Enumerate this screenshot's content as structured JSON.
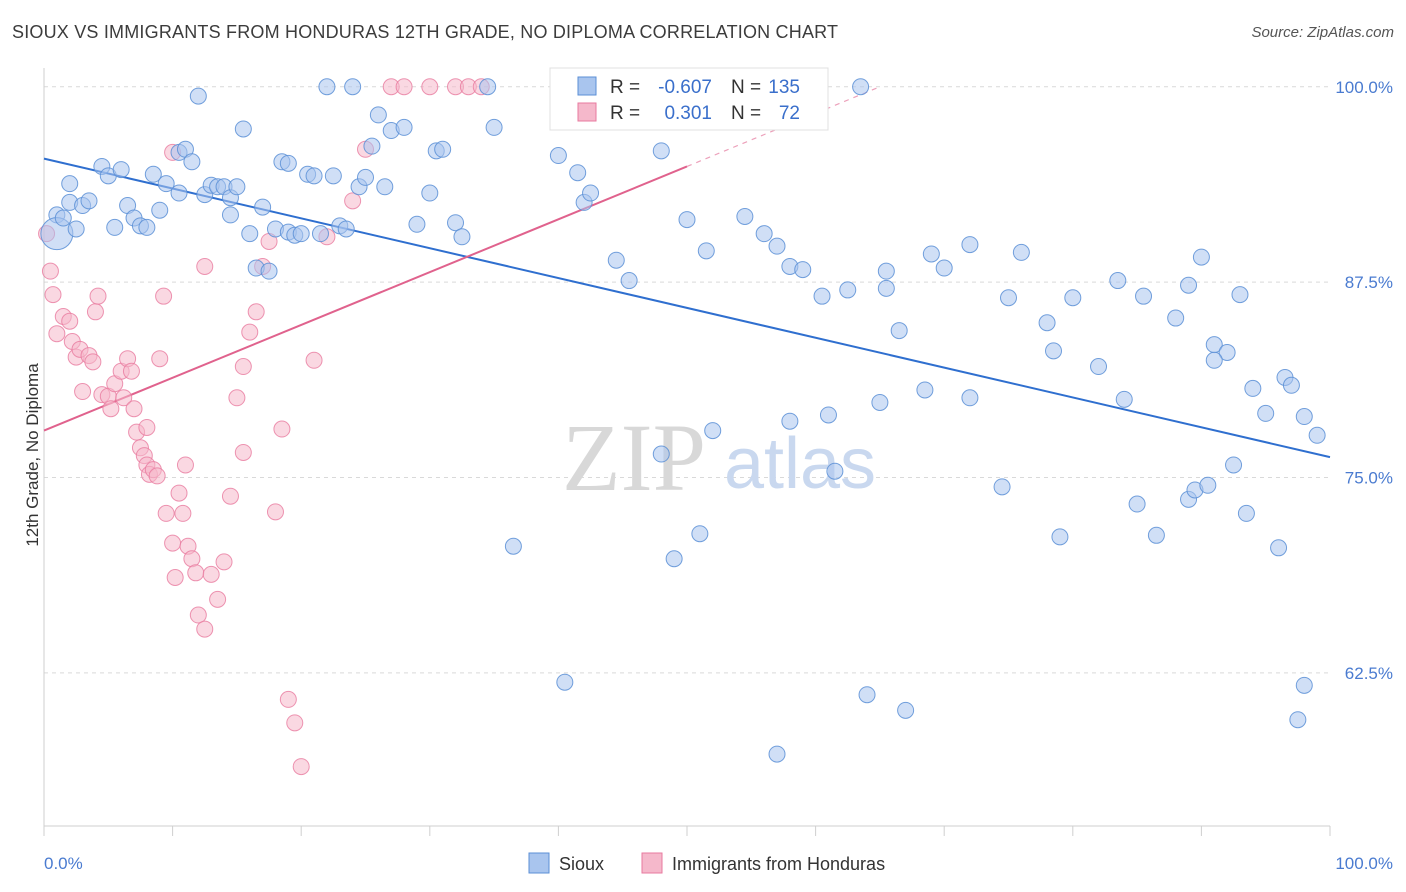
{
  "title": "SIOUX VS IMMIGRANTS FROM HONDURAS 12TH GRADE, NO DIPLOMA CORRELATION CHART",
  "source": "Source: ZipAtlas.com",
  "watermark": {
    "zip": "ZIP",
    "atlas": "atlas"
  },
  "colors": {
    "sioux": "#5b8fd6",
    "sioux_fill": "#a9c5ee",
    "honduras": "#e87a9f",
    "honduras_fill": "#f5b8cb",
    "sioux_line": "#2f6fcf",
    "honduras_line": "#e0628d",
    "grid": "#d9d9d9",
    "tick_text": "#4a7bd0"
  },
  "legend_box": {
    "rows": [
      {
        "r_label": "R =",
        "r_value": "-0.607",
        "n_label": "N =",
        "n_value": "135"
      },
      {
        "r_label": "R =",
        "r_value": "0.301",
        "n_label": "N =",
        "n_value": "72"
      }
    ]
  },
  "bottom_legend": [
    "Sioux",
    "Immigrants from Honduras"
  ],
  "chart_data": {
    "type": "scatter",
    "title": "SIOUX VS IMMIGRANTS FROM HONDURAS 12TH GRADE, NO DIPLOMA CORRELATION CHART",
    "xlabel": "",
    "ylabel": "12th Grade, No Diploma",
    "x_tick_labels": [
      "0.0%",
      "100.0%"
    ],
    "y_tick_labels": [
      "100.0%",
      "87.5%",
      "75.0%",
      "62.5%"
    ],
    "xlim": [
      0,
      100
    ],
    "ylim": [
      52.7,
      101.2
    ],
    "y_ticks": [
      100.0,
      87.5,
      75.0,
      62.5
    ],
    "grid": true,
    "series": [
      {
        "name": "Sioux",
        "R": -0.607,
        "N": 135,
        "trend": [
          [
            0,
            95.4
          ],
          [
            100,
            76.3
          ]
        ],
        "points": [
          [
            1,
            91.8
          ],
          [
            1,
            90.6
          ],
          [
            1.5,
            91.6
          ],
          [
            2,
            92.6
          ],
          [
            2,
            93.8
          ],
          [
            2.5,
            90.9
          ],
          [
            3,
            92.4
          ],
          [
            3.5,
            92.7
          ],
          [
            4.5,
            94.9
          ],
          [
            5,
            94.3
          ],
          [
            5.5,
            91.0
          ],
          [
            6,
            94.7
          ],
          [
            6.5,
            92.4
          ],
          [
            7,
            91.6
          ],
          [
            7.5,
            91.1
          ],
          [
            8,
            91.0
          ],
          [
            8.5,
            94.4
          ],
          [
            9,
            92.1
          ],
          [
            9.5,
            93.8
          ],
          [
            10.5,
            93.2
          ],
          [
            10.5,
            95.8
          ],
          [
            11,
            96.0
          ],
          [
            11.5,
            95.2
          ],
          [
            12,
            99.4
          ],
          [
            12.5,
            93.1
          ],
          [
            13,
            93.7
          ],
          [
            13.5,
            93.6
          ],
          [
            14,
            93.6
          ],
          [
            14.5,
            92.9
          ],
          [
            14.5,
            91.8
          ],
          [
            15,
            93.6
          ],
          [
            15.5,
            97.3
          ],
          [
            16,
            90.6
          ],
          [
            16.5,
            88.4
          ],
          [
            17,
            92.3
          ],
          [
            17.5,
            88.2
          ],
          [
            18,
            90.9
          ],
          [
            18.5,
            95.2
          ],
          [
            19,
            95.1
          ],
          [
            19,
            90.7
          ],
          [
            19.5,
            90.5
          ],
          [
            20,
            90.6
          ],
          [
            20.5,
            94.4
          ],
          [
            21,
            94.3
          ],
          [
            21.5,
            90.6
          ],
          [
            22,
            100.0
          ],
          [
            22.5,
            94.3
          ],
          [
            23,
            91.1
          ],
          [
            23.5,
            90.9
          ],
          [
            24,
            100.0
          ],
          [
            24.5,
            93.6
          ],
          [
            25,
            94.2
          ],
          [
            25.5,
            96.2
          ],
          [
            26,
            98.2
          ],
          [
            26.5,
            93.6
          ],
          [
            27,
            97.2
          ],
          [
            28,
            97.4
          ],
          [
            29,
            91.2
          ],
          [
            30,
            93.2
          ],
          [
            30.5,
            95.9
          ],
          [
            31,
            96.0
          ],
          [
            32,
            91.3
          ],
          [
            32.5,
            90.4
          ],
          [
            34.5,
            100.0
          ],
          [
            35,
            97.4
          ],
          [
            40,
            95.6
          ],
          [
            41.5,
            94.5
          ],
          [
            42,
            92.6
          ],
          [
            42.5,
            93.2
          ],
          [
            44.5,
            88.9
          ],
          [
            45.5,
            87.6
          ],
          [
            47,
            100.0
          ],
          [
            48,
            95.9
          ],
          [
            50,
            91.5
          ],
          [
            51.5,
            89.5
          ],
          [
            54.5,
            91.7
          ],
          [
            56,
            90.6
          ],
          [
            57,
            89.8
          ],
          [
            58,
            88.5
          ],
          [
            59,
            88.3
          ],
          [
            60.5,
            86.6
          ],
          [
            62.5,
            87.0
          ],
          [
            63.5,
            100.0
          ],
          [
            65.5,
            88.2
          ],
          [
            65.5,
            87.1
          ],
          [
            66.5,
            84.4
          ],
          [
            69,
            89.3
          ],
          [
            70,
            88.4
          ],
          [
            72,
            89.9
          ],
          [
            75,
            86.5
          ],
          [
            76,
            89.4
          ],
          [
            78,
            84.9
          ],
          [
            78.5,
            83.1
          ],
          [
            80,
            86.5
          ],
          [
            82,
            82.1
          ],
          [
            83.5,
            87.6
          ],
          [
            85.5,
            86.6
          ],
          [
            88,
            85.2
          ],
          [
            89,
            87.3
          ],
          [
            90,
            89.1
          ],
          [
            91,
            83.5
          ],
          [
            92,
            83.0
          ],
          [
            93,
            86.7
          ],
          [
            94,
            80.7
          ],
          [
            95,
            79.1
          ],
          [
            96.5,
            81.4
          ],
          [
            97,
            80.9
          ],
          [
            98,
            78.9
          ],
          [
            99,
            77.7
          ],
          [
            74.5,
            74.4
          ],
          [
            79,
            71.2
          ],
          [
            85,
            73.3
          ],
          [
            86.5,
            71.3
          ],
          [
            89,
            73.6
          ],
          [
            89.5,
            74.2
          ],
          [
            90.5,
            74.5
          ],
          [
            92.5,
            75.8
          ],
          [
            93.5,
            72.7
          ],
          [
            96,
            70.5
          ],
          [
            98,
            61.7
          ],
          [
            97.5,
            59.5
          ],
          [
            91,
            82.5
          ],
          [
            84,
            80.0
          ],
          [
            72,
            80.1
          ],
          [
            68.5,
            80.6
          ],
          [
            65,
            79.8
          ],
          [
            61,
            79.0
          ],
          [
            58,
            78.6
          ],
          [
            52,
            78.0
          ],
          [
            48,
            76.5
          ],
          [
            40.5,
            61.9
          ],
          [
            64,
            61.1
          ],
          [
            67,
            60.1
          ],
          [
            57,
            57.3
          ],
          [
            36.5,
            70.6
          ],
          [
            49,
            69.8
          ],
          [
            51,
            71.4
          ],
          [
            61.5,
            75.4
          ]
        ]
      },
      {
        "name": "Immigrants from Honduras",
        "R": 0.301,
        "N": 72,
        "trend": [
          [
            0,
            78.0
          ],
          [
            50,
            94.9
          ]
        ],
        "trend_dashed": [
          [
            50,
            94.9
          ],
          [
            65,
            100.0
          ]
        ],
        "points": [
          [
            0.2,
            90.6
          ],
          [
            0.5,
            88.2
          ],
          [
            0.7,
            86.7
          ],
          [
            1,
            84.2
          ],
          [
            1.5,
            85.3
          ],
          [
            2,
            85.0
          ],
          [
            2.2,
            83.7
          ],
          [
            2.5,
            82.7
          ],
          [
            2.8,
            83.2
          ],
          [
            3,
            80.5
          ],
          [
            3.5,
            82.8
          ],
          [
            3.8,
            82.4
          ],
          [
            4,
            85.6
          ],
          [
            4.2,
            86.6
          ],
          [
            4.5,
            80.3
          ],
          [
            5,
            80.2
          ],
          [
            5.2,
            79.4
          ],
          [
            5.5,
            81.0
          ],
          [
            6,
            81.8
          ],
          [
            6.2,
            80.1
          ],
          [
            6.5,
            82.6
          ],
          [
            6.8,
            81.8
          ],
          [
            7,
            79.4
          ],
          [
            7.2,
            77.9
          ],
          [
            7.5,
            76.9
          ],
          [
            7.8,
            76.4
          ],
          [
            8,
            75.8
          ],
          [
            8.2,
            75.2
          ],
          [
            8.5,
            75.5
          ],
          [
            8.8,
            75.1
          ],
          [
            9,
            82.6
          ],
          [
            9.3,
            86.6
          ],
          [
            9.5,
            72.7
          ],
          [
            10,
            70.8
          ],
          [
            10.2,
            68.6
          ],
          [
            10.5,
            74.0
          ],
          [
            10.8,
            72.7
          ],
          [
            11,
            75.8
          ],
          [
            11.2,
            70.6
          ],
          [
            11.5,
            69.8
          ],
          [
            11.8,
            68.9
          ],
          [
            12,
            66.2
          ],
          [
            12.5,
            65.3
          ],
          [
            13,
            68.8
          ],
          [
            13.5,
            67.2
          ],
          [
            14,
            69.6
          ],
          [
            14.5,
            73.8
          ],
          [
            15,
            80.1
          ],
          [
            15.5,
            82.1
          ],
          [
            16,
            84.3
          ],
          [
            16.5,
            85.6
          ],
          [
            17,
            88.5
          ],
          [
            17.5,
            90.1
          ],
          [
            18,
            72.8
          ],
          [
            18.5,
            78.1
          ],
          [
            19,
            60.8
          ],
          [
            19.5,
            59.3
          ],
          [
            20,
            56.5
          ],
          [
            21,
            82.5
          ],
          [
            22,
            90.4
          ],
          [
            24,
            92.7
          ],
          [
            25,
            96.0
          ],
          [
            27,
            100.0
          ],
          [
            28,
            100.0
          ],
          [
            30,
            100.0
          ],
          [
            32,
            100.0
          ],
          [
            33,
            100.0
          ],
          [
            34,
            100.0
          ],
          [
            10,
            95.8
          ],
          [
            12.5,
            88.5
          ],
          [
            8,
            78.2
          ],
          [
            15.5,
            76.6
          ]
        ]
      }
    ]
  }
}
